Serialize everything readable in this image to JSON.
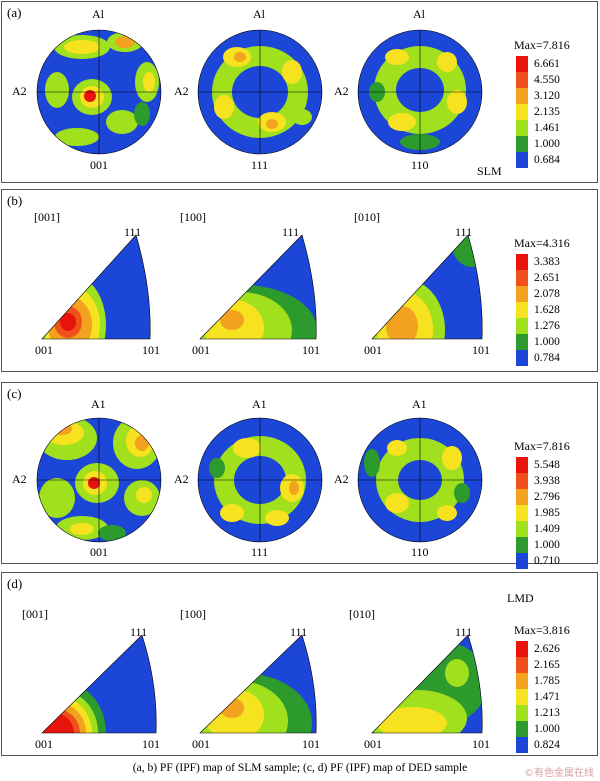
{
  "panels": [
    {
      "tag": "(a)",
      "kind": "pole",
      "sample_label": "SLM",
      "plots": [
        {
          "bottom": "001",
          "top": "Al",
          "left": "A2"
        },
        {
          "bottom": "111",
          "top": "Al",
          "left": "A2"
        },
        {
          "bottom": "110",
          "top": "Al",
          "left": "A2"
        }
      ],
      "legend": {
        "max": "Max=7.816",
        "values": [
          "6.661",
          "4.550",
          "3.120",
          "2.135",
          "1.461",
          "1.000",
          "0.684"
        ]
      }
    },
    {
      "tag": "(b)",
      "kind": "inverse",
      "plots": [
        {
          "direction": "[001]",
          "corner_left": "001",
          "corner_right": "101",
          "corner_top": "111"
        },
        {
          "direction": "[100]",
          "corner_left": "001",
          "corner_right": "101",
          "corner_top": "111"
        },
        {
          "direction": "[010]",
          "corner_left": "001",
          "corner_right": "101",
          "corner_top": "111"
        }
      ],
      "legend": {
        "max": "Max=4.316",
        "values": [
          "3.383",
          "2.651",
          "2.078",
          "1.628",
          "1.276",
          "1.000",
          "0.784"
        ]
      }
    },
    {
      "tag": "(c)",
      "kind": "pole",
      "plots": [
        {
          "bottom": "001",
          "top": "A1",
          "left": "A2"
        },
        {
          "bottom": "111",
          "top": "A1",
          "left": "A2"
        },
        {
          "bottom": "110",
          "top": "A1",
          "left": "A2"
        }
      ],
      "legend": {
        "max": "Max=7.816",
        "values": [
          "5.548",
          "3.938",
          "2.796",
          "1.985",
          "1.409",
          "1.000",
          "0.710"
        ]
      }
    },
    {
      "tag": "(d)",
      "kind": "inverse",
      "sample_label": "LMD",
      "plots": [
        {
          "direction": "[001]",
          "corner_left": "001",
          "corner_right": "101",
          "corner_top": "111"
        },
        {
          "direction": "[100]",
          "corner_left": "001",
          "corner_right": "101",
          "corner_top": "111"
        },
        {
          "direction": "[010]",
          "corner_left": "001",
          "corner_right": "101",
          "corner_top": "111"
        }
      ],
      "legend": {
        "max": "Max=3.816",
        "values": [
          "2.626",
          "2.165",
          "1.785",
          "1.471",
          "1.213",
          "1.000",
          "0.824"
        ]
      }
    }
  ],
  "legend_colors": [
    "#e8140c",
    "#f0501a",
    "#f2a21e",
    "#f6e21e",
    "#a0e01c",
    "#2c9a2c",
    "#1c46d8"
  ],
  "caption": "(a, b) PF (IPF) map of SLM sample; (c, d) PF (IPF) map of DED sample",
  "watermark": "©有色金属在线"
}
